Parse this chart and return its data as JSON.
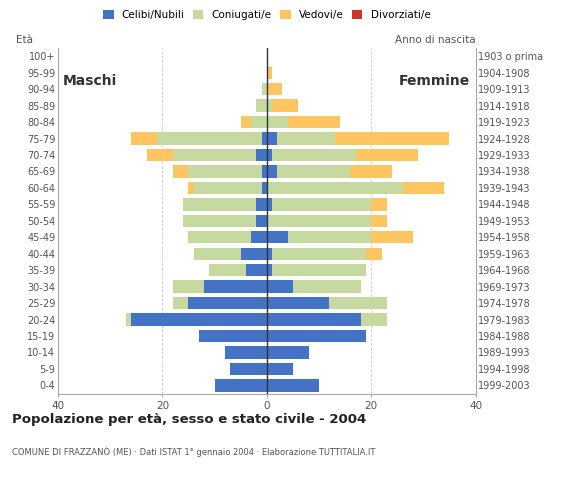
{
  "age_groups": [
    "0-4",
    "5-9",
    "10-14",
    "15-19",
    "20-24",
    "25-29",
    "30-34",
    "35-39",
    "40-44",
    "45-49",
    "50-54",
    "55-59",
    "60-64",
    "65-69",
    "70-74",
    "75-79",
    "80-84",
    "85-89",
    "90-94",
    "95-99",
    "100+"
  ],
  "birth_years": [
    "1999-2003",
    "1994-1998",
    "1989-1993",
    "1984-1988",
    "1979-1983",
    "1974-1978",
    "1969-1973",
    "1964-1968",
    "1959-1963",
    "1954-1958",
    "1949-1953",
    "1944-1948",
    "1939-1943",
    "1934-1938",
    "1929-1933",
    "1924-1928",
    "1919-1923",
    "1914-1918",
    "1909-1913",
    "1904-1908",
    "1903 o prima"
  ],
  "males": {
    "celibi": [
      10,
      7,
      8,
      13,
      26,
      15,
      12,
      4,
      5,
      3,
      2,
      2,
      1,
      1,
      2,
      1,
      0,
      0,
      0,
      0,
      0
    ],
    "coniugati": [
      0,
      0,
      0,
      0,
      1,
      3,
      6,
      7,
      9,
      12,
      14,
      14,
      13,
      14,
      16,
      20,
      3,
      2,
      1,
      0,
      0
    ],
    "vedovi": [
      0,
      0,
      0,
      0,
      0,
      0,
      0,
      0,
      0,
      0,
      0,
      0,
      1,
      3,
      5,
      5,
      2,
      0,
      0,
      0,
      0
    ],
    "divorziati": [
      0,
      0,
      0,
      0,
      0,
      0,
      0,
      0,
      0,
      0,
      0,
      0,
      0,
      0,
      0,
      0,
      0,
      0,
      0,
      0,
      0
    ]
  },
  "females": {
    "nubili": [
      10,
      5,
      8,
      19,
      18,
      12,
      5,
      1,
      1,
      4,
      0,
      1,
      0,
      2,
      1,
      2,
      0,
      0,
      0,
      0,
      0
    ],
    "coniugate": [
      0,
      0,
      0,
      0,
      5,
      11,
      13,
      18,
      18,
      16,
      20,
      19,
      26,
      14,
      16,
      11,
      4,
      1,
      0,
      0,
      0
    ],
    "vedove": [
      0,
      0,
      0,
      0,
      0,
      0,
      0,
      0,
      3,
      8,
      3,
      3,
      8,
      8,
      12,
      22,
      10,
      5,
      3,
      1,
      0
    ],
    "divorziate": [
      0,
      0,
      0,
      0,
      0,
      0,
      0,
      0,
      0,
      0,
      0,
      0,
      0,
      0,
      0,
      0,
      0,
      0,
      0,
      0,
      0
    ]
  },
  "colors": {
    "celibi": "#4472c4",
    "coniugati": "#c5d9a0",
    "vedovi": "#ffc560",
    "divorziati": "#d0342c"
  },
  "title": "Popolazione per età, sesso e stato civile - 2004",
  "subtitle": "COMUNE DI FRAZZANÒ (ME) · Dati ISTAT 1° gennaio 2004 · Elaborazione TUTTITALIA.IT",
  "xlabel_left": "Maschi",
  "xlabel_right": "Femmine",
  "ylabel_left": "Età",
  "ylabel_right": "Anno di nascita",
  "xlim": 40,
  "legend_labels": [
    "Celibi/Nubili",
    "Coniugati/e",
    "Vedovi/e",
    "Divorziati/e"
  ],
  "background_color": "#ffffff"
}
